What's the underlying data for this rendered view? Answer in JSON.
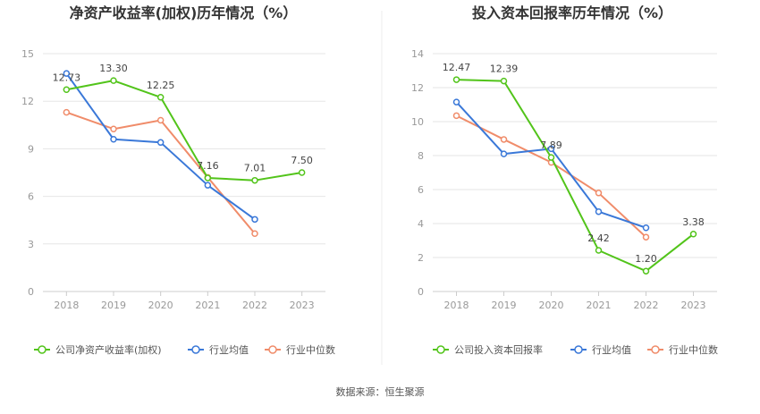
{
  "source": "数据来源：恒生聚源",
  "chart_data": [
    {
      "type": "line",
      "title": "净资产收益率(加权)历年情况（%）",
      "categories": [
        "2018",
        "2019",
        "2020",
        "2021",
        "2022",
        "2023"
      ],
      "ylim": [
        0,
        15
      ],
      "yticks": [
        0,
        3,
        6,
        9,
        12,
        15
      ],
      "grid": true,
      "legend": "bottom",
      "series": [
        {
          "name": "公司净资产收益率(加权)",
          "color": "#52c41a",
          "values": [
            12.73,
            13.3,
            12.25,
            7.16,
            7.01,
            7.5
          ],
          "labels": [
            "12.73",
            "13.30",
            "12.25",
            "7.16",
            "7.01",
            "7.50"
          ]
        },
        {
          "name": "行业均值",
          "color": "#3a78d8",
          "values": [
            13.75,
            9.6,
            9.4,
            6.7,
            4.55,
            null
          ]
        },
        {
          "name": "行业中位数",
          "color": "#f08c6a",
          "values": [
            11.3,
            10.25,
            10.8,
            7.2,
            3.65,
            null
          ]
        }
      ]
    },
    {
      "type": "line",
      "title": "投入资本回报率历年情况（%）",
      "categories": [
        "2018",
        "2019",
        "2020",
        "2021",
        "2022",
        "2023"
      ],
      "ylim": [
        0,
        14
      ],
      "yticks": [
        0,
        2,
        4,
        6,
        8,
        10,
        12,
        14
      ],
      "grid": true,
      "legend": "bottom",
      "series": [
        {
          "name": "公司投入资本回报率",
          "color": "#52c41a",
          "values": [
            12.47,
            12.39,
            7.89,
            2.42,
            1.2,
            3.38
          ],
          "labels": [
            "12.47",
            "12.39",
            "7.89",
            "2.42",
            "1.20",
            "3.38"
          ]
        },
        {
          "name": "行业均值",
          "color": "#3a78d8",
          "values": [
            11.15,
            8.1,
            8.4,
            4.7,
            3.75,
            null
          ]
        },
        {
          "name": "行业中位数",
          "color": "#f08c6a",
          "values": [
            10.35,
            8.95,
            7.6,
            5.8,
            3.2,
            null
          ]
        }
      ]
    }
  ]
}
